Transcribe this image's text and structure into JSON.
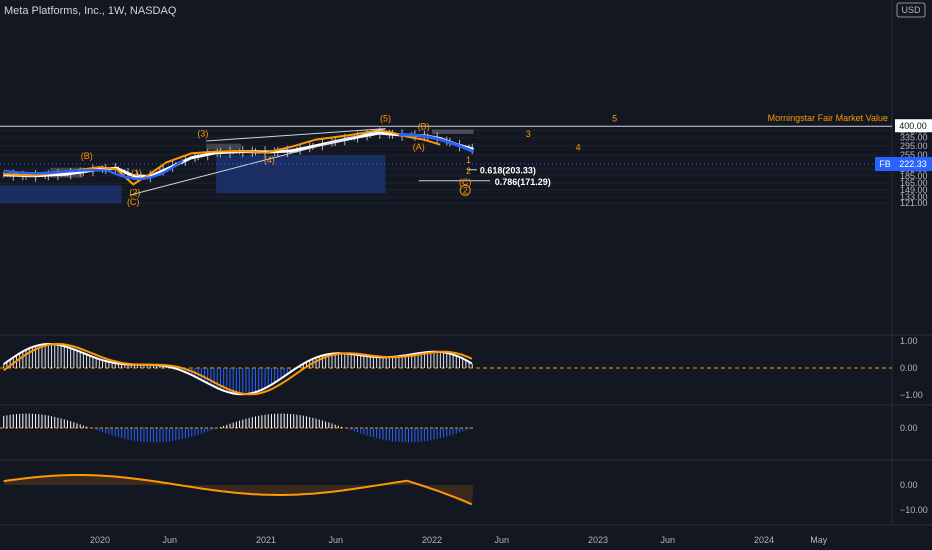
{
  "title": "Meta Platforms, Inc., 1W, NASDAQ",
  "currency": "USD",
  "last_price_badge": {
    "symbol": "FB",
    "value": "222.33"
  },
  "fair_value": {
    "label": "Morningstar Fair Market Value",
    "value": "400.00"
  },
  "fib_levels": [
    {
      "label": "0.618(203.33)",
      "value": 203.33
    },
    {
      "label": "0.786(171.29)",
      "value": 171.29
    }
  ],
  "wave_labels": [
    {
      "text": "(5)",
      "t": 2021.72,
      "price": 430
    },
    {
      "text": "5",
      "t": 2023.1,
      "price": 430
    },
    {
      "text": "(B)",
      "t": 2021.95,
      "price": 380
    },
    {
      "text": "(3)",
      "t": 2020.62,
      "price": 340
    },
    {
      "text": "3",
      "t": 2022.58,
      "price": 338
    },
    {
      "text": "(A)",
      "t": 2021.92,
      "price": 277
    },
    {
      "text": "4",
      "t": 2022.88,
      "price": 275
    },
    {
      "text": "(B)",
      "t": 2019.92,
      "price": 241
    },
    {
      "text": "(4)",
      "t": 2021.02,
      "price": 225
    },
    {
      "text": "1",
      "t": 2022.22,
      "price": 225
    },
    {
      "text": "(1)",
      "t": 2020.22,
      "price": 185
    },
    {
      "text": "2",
      "t": 2022.22,
      "price": 190
    },
    {
      "text": "(C)",
      "t": 2022.2,
      "price": 160
    },
    {
      "text": "(2)",
      "t": 2020.21,
      "price": 136
    },
    {
      "text": "(C)",
      "t": 2020.2,
      "price": 118
    }
  ],
  "circled_label": {
    "text": "2",
    "t": 2022.2,
    "price": 141
  },
  "chart_data": [
    {
      "type": "line",
      "panel": "price",
      "yaxis": {
        "scale": "log",
        "ticks": [
          121,
          133,
          149,
          165,
          185,
          205,
          222.33,
          255,
          295,
          335,
          375,
          400
        ]
      },
      "xaxis": {
        "ticks": [
          {
            "t": 2019.33,
            "label": "Jun"
          },
          {
            "t": 2020.0,
            "label": "2020"
          },
          {
            "t": 2020.42,
            "label": "Jun"
          },
          {
            "t": 2021.0,
            "label": "2021"
          },
          {
            "t": 2021.42,
            "label": "Jun"
          },
          {
            "t": 2022.0,
            "label": "2022"
          },
          {
            "t": 2022.42,
            "label": "Jun"
          },
          {
            "t": 2023.0,
            "label": "2023"
          },
          {
            "t": 2023.42,
            "label": "Jun"
          },
          {
            "t": 2024.0,
            "label": "2024"
          },
          {
            "t": 2024.33,
            "label": "May"
          }
        ]
      },
      "series": [
        {
          "color": "#ffffff",
          "points": [
            [
              2019.42,
              188
            ],
            [
              2019.6,
              185
            ],
            [
              2019.8,
              190
            ],
            [
              2020.0,
              205
            ],
            [
              2020.1,
              208
            ],
            [
              2020.2,
              185
            ],
            [
              2020.3,
              183
            ],
            [
              2020.4,
              205
            ],
            [
              2020.55,
              245
            ],
            [
              2020.7,
              265
            ],
            [
              2020.85,
              270
            ],
            [
              2021.0,
              268
            ],
            [
              2021.15,
              272
            ],
            [
              2021.3,
              295
            ],
            [
              2021.5,
              330
            ],
            [
              2021.68,
              360
            ],
            [
              2021.8,
              350
            ],
            [
              2021.95,
              345
            ],
            [
              2022.05,
              330
            ],
            [
              2022.15,
              300
            ],
            [
              2022.25,
              280
            ]
          ]
        },
        {
          "color": "#ff9800",
          "points": [
            [
              2019.42,
              190
            ],
            [
              2019.6,
              186
            ],
            [
              2019.8,
              198
            ],
            [
              2020.0,
              212
            ],
            [
              2020.1,
              205
            ],
            [
              2020.2,
              162
            ],
            [
              2020.3,
              190
            ],
            [
              2020.4,
              228
            ],
            [
              2020.55,
              262
            ],
            [
              2020.7,
              270
            ],
            [
              2020.85,
              272
            ],
            [
              2021.0,
              265
            ],
            [
              2021.15,
              290
            ],
            [
              2021.3,
              325
            ],
            [
              2021.5,
              348
            ],
            [
              2021.68,
              375
            ],
            [
              2021.75,
              365
            ],
            [
              2021.85,
              340
            ],
            [
              2021.95,
              325
            ],
            [
              2022.05,
              300
            ]
          ]
        }
      ]
    },
    {
      "type": "bar",
      "panel": "oscillator_1",
      "yaxis": {
        "ticks": [
          1.0,
          0.0,
          -1.0
        ]
      },
      "series": [
        {
          "color": "#ff9800"
        }
      ]
    },
    {
      "type": "bar",
      "panel": "oscillator_2",
      "yaxis": {
        "ticks": [
          0.0
        ]
      },
      "series": [
        {
          "color": "#2962ff"
        }
      ]
    },
    {
      "type": "area",
      "panel": "oscillator_3",
      "yaxis": {
        "ticks": [
          0.0,
          -10.0
        ]
      },
      "series": [
        {
          "color": "#ff9800"
        },
        {
          "color": "#2962ff"
        }
      ]
    }
  ],
  "axis_labels": {
    "panel1": [
      "1.00",
      "0.00",
      "−1.00"
    ],
    "panel2": [
      "0.00"
    ],
    "panel3": [
      "0.00",
      "−10.00"
    ]
  }
}
